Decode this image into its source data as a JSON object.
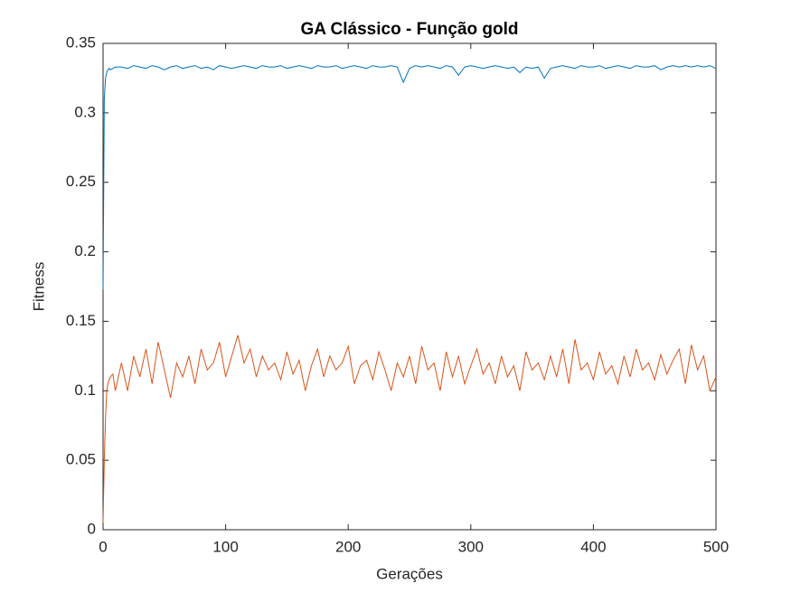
{
  "chart_data": {
    "type": "line",
    "title": "GA Clássico - Função gold",
    "xlabel": "Gerações",
    "ylabel": "Fitness",
    "x": [
      0,
      1,
      2,
      3,
      4,
      5,
      6,
      8,
      10,
      15,
      20,
      25,
      30,
      35,
      40,
      45,
      50,
      55,
      60,
      65,
      70,
      75,
      80,
      85,
      90,
      95,
      100,
      105,
      110,
      115,
      120,
      125,
      130,
      135,
      140,
      145,
      150,
      155,
      160,
      165,
      170,
      175,
      180,
      185,
      190,
      195,
      200,
      205,
      210,
      215,
      220,
      225,
      230,
      235,
      240,
      245,
      250,
      255,
      260,
      265,
      270,
      275,
      280,
      285,
      290,
      295,
      300,
      305,
      310,
      315,
      320,
      325,
      330,
      335,
      340,
      345,
      350,
      355,
      360,
      365,
      370,
      375,
      380,
      385,
      390,
      395,
      400,
      405,
      410,
      415,
      420,
      425,
      430,
      435,
      440,
      445,
      450,
      455,
      460,
      465,
      470,
      475,
      480,
      485,
      490,
      495,
      500
    ],
    "series": [
      {
        "color": "#0072bd",
        "values": [
          0.173,
          0.31,
          0.325,
          0.329,
          0.331,
          0.332,
          0.331,
          0.332,
          0.333,
          0.333,
          0.332,
          0.334,
          0.333,
          0.332,
          0.334,
          0.333,
          0.331,
          0.333,
          0.334,
          0.332,
          0.333,
          0.334,
          0.332,
          0.333,
          0.331,
          0.334,
          0.333,
          0.332,
          0.333,
          0.334,
          0.333,
          0.332,
          0.334,
          0.333,
          0.333,
          0.334,
          0.332,
          0.333,
          0.334,
          0.333,
          0.332,
          0.334,
          0.333,
          0.333,
          0.334,
          0.332,
          0.333,
          0.334,
          0.333,
          0.332,
          0.334,
          0.333,
          0.333,
          0.334,
          0.333,
          0.322,
          0.332,
          0.334,
          0.333,
          0.334,
          0.333,
          0.332,
          0.334,
          0.333,
          0.327,
          0.333,
          0.334,
          0.333,
          0.332,
          0.333,
          0.334,
          0.333,
          0.332,
          0.333,
          0.329,
          0.333,
          0.332,
          0.333,
          0.325,
          0.332,
          0.333,
          0.334,
          0.333,
          0.332,
          0.334,
          0.333,
          0.333,
          0.334,
          0.332,
          0.333,
          0.334,
          0.333,
          0.332,
          0.334,
          0.333,
          0.333,
          0.334,
          0.331,
          0.333,
          0.334,
          0.333,
          0.334,
          0.333,
          0.334,
          0.333,
          0.334,
          0.332
        ]
      },
      {
        "color": "#d95319",
        "values": [
          0.005,
          0.05,
          0.08,
          0.1,
          0.105,
          0.108,
          0.11,
          0.112,
          0.1,
          0.12,
          0.1,
          0.125,
          0.11,
          0.13,
          0.105,
          0.135,
          0.115,
          0.095,
          0.12,
          0.11,
          0.125,
          0.105,
          0.13,
          0.115,
          0.12,
          0.135,
          0.11,
          0.125,
          0.14,
          0.12,
          0.13,
          0.11,
          0.125,
          0.115,
          0.12,
          0.108,
          0.128,
          0.112,
          0.122,
          0.1,
          0.118,
          0.13,
          0.11,
          0.125,
          0.115,
          0.12,
          0.132,
          0.105,
          0.118,
          0.122,
          0.108,
          0.128,
          0.115,
          0.1,
          0.12,
          0.11,
          0.125,
          0.105,
          0.132,
          0.115,
          0.12,
          0.1,
          0.128,
          0.11,
          0.125,
          0.105,
          0.118,
          0.13,
          0.112,
          0.12,
          0.105,
          0.125,
          0.11,
          0.118,
          0.1,
          0.128,
          0.115,
          0.12,
          0.108,
          0.125,
          0.11,
          0.13,
          0.105,
          0.137,
          0.115,
          0.12,
          0.108,
          0.128,
          0.112,
          0.118,
          0.105,
          0.125,
          0.11,
          0.13,
          0.115,
          0.12,
          0.108,
          0.126,
          0.112,
          0.122,
          0.13,
          0.105,
          0.133,
          0.115,
          0.125,
          0.1,
          0.11
        ]
      }
    ],
    "xlim": [
      0,
      500
    ],
    "xticks": [
      0,
      100,
      200,
      300,
      400,
      500
    ],
    "ylim": [
      0,
      0.35
    ],
    "yticks": [
      0,
      0.05,
      0.1,
      0.15,
      0.2,
      0.25,
      0.3,
      0.35
    ]
  }
}
